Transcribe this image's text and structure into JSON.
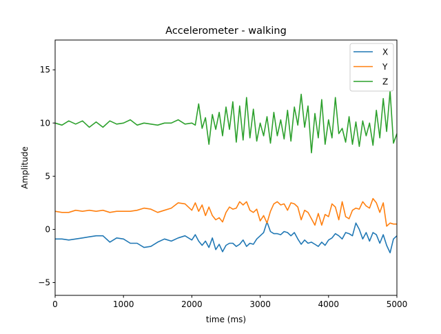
{
  "chart_data": {
    "type": "line",
    "title": "Accelerometer - walking",
    "xlabel": "time (ms)",
    "ylabel": "Amplitude",
    "xlim": [
      0,
      5000
    ],
    "ylim": [
      -6.2,
      17.8
    ],
    "x_ticks": [
      0,
      1000,
      2000,
      3000,
      4000,
      5000
    ],
    "y_ticks": [
      -5,
      0,
      5,
      10,
      15
    ],
    "grid": false,
    "legend_position": "top-right",
    "x": [
      0,
      100,
      200,
      300,
      400,
      500,
      600,
      700,
      800,
      900,
      1000,
      1100,
      1200,
      1300,
      1400,
      1500,
      1600,
      1700,
      1800,
      1900,
      2000,
      2050,
      2100,
      2150,
      2200,
      2250,
      2300,
      2350,
      2400,
      2450,
      2500,
      2550,
      2600,
      2650,
      2700,
      2750,
      2800,
      2850,
      2900,
      2950,
      3000,
      3050,
      3100,
      3150,
      3200,
      3250,
      3300,
      3350,
      3400,
      3450,
      3500,
      3550,
      3600,
      3650,
      3700,
      3750,
      3800,
      3850,
      3900,
      3950,
      4000,
      4050,
      4100,
      4150,
      4200,
      4250,
      4300,
      4350,
      4400,
      4450,
      4500,
      4550,
      4600,
      4650,
      4700,
      4750,
      4800,
      4850,
      4900,
      4950,
      5000
    ],
    "series": [
      {
        "name": "X",
        "color": "#1f77b4",
        "values": [
          -0.9,
          -0.9,
          -1.0,
          -0.9,
          -0.8,
          -0.7,
          -0.6,
          -0.6,
          -1.2,
          -0.8,
          -0.9,
          -1.3,
          -1.3,
          -1.7,
          -1.6,
          -1.2,
          -0.9,
          -1.1,
          -0.8,
          -0.6,
          -1.0,
          -0.5,
          -1.1,
          -1.5,
          -1.1,
          -1.7,
          -0.8,
          -1.9,
          -1.4,
          -2.1,
          -1.5,
          -1.3,
          -1.3,
          -1.6,
          -1.4,
          -1.0,
          -1.6,
          -1.3,
          -1.4,
          -0.9,
          -0.6,
          -0.3,
          0.7,
          -0.2,
          -0.4,
          -0.4,
          -0.5,
          -0.2,
          -0.3,
          -0.6,
          -0.3,
          -0.9,
          -1.4,
          -1.0,
          -1.3,
          -1.2,
          -1.4,
          -1.6,
          -1.2,
          -1.5,
          -1.0,
          -0.8,
          -0.4,
          -0.6,
          -0.9,
          -0.3,
          -0.4,
          -0.6,
          0.6,
          0.0,
          -0.9,
          -0.3,
          -1.1,
          -0.3,
          -0.5,
          -1.3,
          -0.5,
          -1.5,
          -2.2,
          -0.9,
          -0.6
        ]
      },
      {
        "name": "Y",
        "color": "#ff7f0e",
        "values": [
          1.7,
          1.6,
          1.6,
          1.8,
          1.7,
          1.8,
          1.7,
          1.8,
          1.6,
          1.7,
          1.7,
          1.7,
          1.8,
          2.0,
          1.9,
          1.6,
          1.8,
          2.0,
          2.5,
          2.4,
          1.8,
          2.5,
          1.7,
          2.3,
          1.3,
          2.1,
          1.3,
          0.9,
          1.1,
          0.7,
          1.6,
          2.1,
          1.9,
          2.0,
          2.6,
          2.3,
          2.6,
          1.8,
          1.6,
          1.9,
          0.8,
          1.3,
          0.6,
          1.7,
          2.4,
          2.6,
          2.3,
          2.4,
          1.8,
          2.5,
          2.4,
          2.1,
          0.9,
          1.8,
          1.6,
          1.0,
          0.4,
          1.5,
          0.4,
          1.4,
          1.2,
          2.4,
          2.1,
          0.9,
          2.6,
          1.2,
          1.0,
          1.8,
          2.0,
          1.9,
          2.6,
          2.2,
          2.0,
          2.9,
          2.5,
          1.6,
          2.5,
          0.3,
          0.6,
          0.5,
          0.5
        ]
      },
      {
        "name": "Z",
        "color": "#2ca02c",
        "values": [
          10.0,
          9.8,
          10.2,
          9.9,
          10.2,
          9.6,
          10.1,
          9.6,
          10.2,
          9.9,
          10.0,
          10.3,
          9.8,
          10.0,
          9.9,
          9.8,
          10.0,
          10.0,
          10.3,
          9.9,
          10.0,
          9.8,
          11.8,
          9.5,
          10.5,
          8.0,
          10.8,
          9.4,
          11.0,
          8.8,
          11.5,
          9.4,
          12.0,
          8.2,
          11.6,
          8.4,
          12.4,
          8.6,
          11.3,
          8.3,
          10.0,
          8.8,
          10.6,
          8.1,
          11.0,
          8.8,
          10.3,
          8.5,
          11.2,
          8.3,
          11.5,
          9.8,
          12.7,
          9.6,
          11.6,
          7.2,
          10.9,
          8.6,
          12.2,
          8.0,
          10.3,
          8.6,
          12.4,
          9.0,
          9.5,
          8.2,
          10.6,
          8.0,
          10.1,
          7.8,
          10.2,
          8.8,
          10.0,
          7.9,
          11.2,
          8.6,
          12.3,
          9.2,
          13.0,
          8.1,
          9.0
        ]
      }
    ]
  }
}
